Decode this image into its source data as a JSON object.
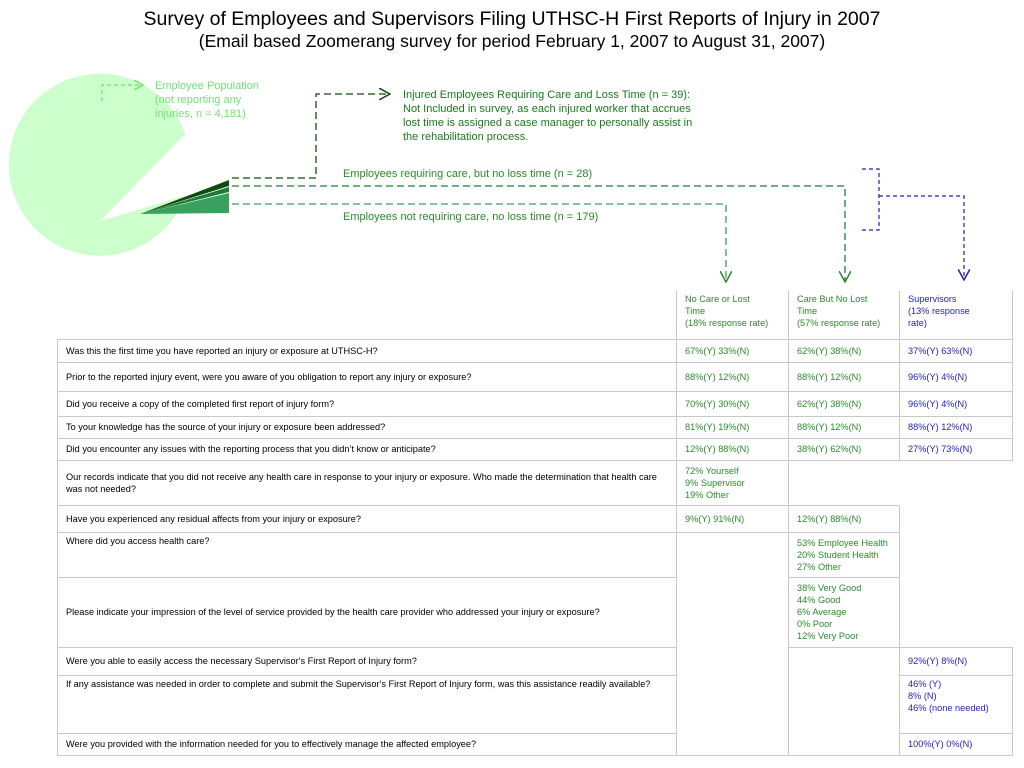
{
  "title": "Survey of Employees and Supervisors Filing UTHSC-H First Reports of Injury in 2007",
  "subtitle": "(Email based Zoomerang survey for period February 1, 2007 to August 31, 2007)",
  "diagram": {
    "population_note": "Employee Population\n(not reporting any\ninjuries, n = 4,181)",
    "lost_time_note": "Injured Employees Requiring Care and Loss Time (n = 39):\nNot Included in survey, as each injured worker that accrues\nlost time is assigned a case manager to personally assist in\nthe rehabilitation process.",
    "care_no_loss_note": "Employees requiring care, but no loss time (n = 28)",
    "no_care_note": "Employees not requiring care, no loss time (n = 179)",
    "colors": {
      "population": "#ccffcc",
      "lost_time": "#0d4d0d",
      "care_no_loss": "#1f7a3a",
      "no_care": "#3aa060",
      "supervisor": "#1f1fb8"
    }
  },
  "table": {
    "headers": {
      "no_care": "No Care or Lost\nTime\n(18% response rate)",
      "care_no_loss": "Care But No Lost\nTime\n(57% response rate)",
      "supervisors": "Supervisors\n (13% response\nrate)"
    },
    "rows": [
      {
        "q": "Was this the first time you have reported an injury or exposure at UTHSC-H?",
        "c1": "67%(Y)  33%(N)",
        "c2": "62%(Y)  38%(N)",
        "c3": "37%(Y)  63%(N)"
      },
      {
        "q": "Prior to the reported injury event, were you aware of you obligation to report any injury or exposure?",
        "c1": "88%(Y)  12%(N)",
        "c2": "88%(Y)  12%(N)",
        "c3": "96%(Y)  4%(N)"
      },
      {
        "q": "Did you receive a copy of the completed first report of injury form?",
        "c1": "70%(Y)  30%(N)",
        "c2": "62%(Y)  38%(N)",
        "c3": "96%(Y)  4%(N)"
      },
      {
        "q": "To your knowledge has the source of your injury or exposure been addressed?",
        "c1": "81%(Y)  19%(N)",
        "c2": "88%(Y)  12%(N)",
        "c3": "88%(Y)  12%(N)"
      },
      {
        "q": "Did you encounter any issues with the reporting process that you didn’t know or anticipate?",
        "c1": "12%(Y)  88%(N)",
        "c2": "38%(Y)  62%(N)",
        "c3": "27%(Y)  73%(N)"
      },
      {
        "q": "Our records indicate that you did not receive any health care in response to your injury or exposure.  Who made the determination that health care was not needed?",
        "c1": "72% Yourself\n  9% Supervisor\n19% Other"
      },
      {
        "q": "Have you experienced any residual affects from your injury or exposure?",
        "c1": "9%(Y)  91%(N)",
        "c2": "12%(Y)  88%(N)"
      },
      {
        "q": "Where did you access health care?",
        "c2": "53% Employee Health\n20% Student Health\n27% Other"
      },
      {
        "q": "Please indicate your impression of the level of service provided by the health care provider who addressed your injury or exposure?",
        "c2": "38% Very Good\n44% Good\n  6% Average\n  0% Poor\n12% Very Poor"
      },
      {
        "q": "Were you able to easily access the necessary Supervisor's First Report of Injury form?",
        "c3": "92%(Y) 8%(N)"
      },
      {
        "q": "If any assistance was needed in order to complete and submit the Supervisor's First Report of Injury form, was this assistance readily available?",
        "c3": "46% (Y)\n  8% (N)\n46% (none needed)"
      },
      {
        "q": "Were you provided with the information needed for you to effectively manage the affected employee?",
        "c3": "100%(Y) 0%(N)"
      }
    ]
  }
}
